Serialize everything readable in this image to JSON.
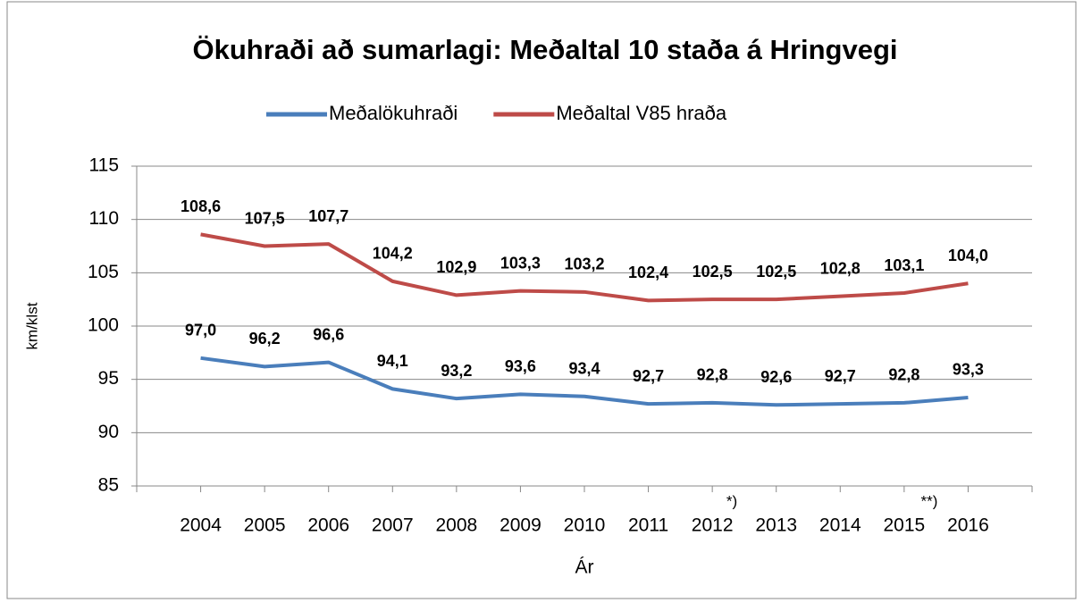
{
  "chart_data": {
    "type": "line",
    "title": "Ökuhraði að sumarlagi: Meðaltal 10 staða á Hringvegi",
    "x_label": "Ár",
    "y_label": "km/klst",
    "categories": [
      "2004",
      "2005",
      "2006",
      "2007",
      "2008",
      "2009",
      "2010",
      "2011",
      "2012",
      "2013",
      "2014",
      "2015",
      "2016"
    ],
    "series": [
      {
        "name": "Meðalökuhraði",
        "color": "#4a7ebb",
        "values": [
          97.0,
          96.2,
          96.6,
          94.1,
          93.2,
          93.6,
          93.4,
          92.7,
          92.8,
          92.6,
          92.7,
          92.8,
          93.3
        ],
        "value_labels": [
          "97,0",
          "96,2",
          "96,6",
          "94,1",
          "93,2",
          "93,6",
          "93,4",
          "92,7",
          "92,8",
          "92,6",
          "92,7",
          "92,8",
          "93,3"
        ]
      },
      {
        "name": "Meðaltal V85 hraða",
        "color": "#be4b48",
        "values": [
          108.6,
          107.5,
          107.7,
          104.2,
          102.9,
          103.3,
          103.2,
          102.4,
          102.5,
          102.5,
          102.8,
          103.1,
          104.0
        ],
        "value_labels": [
          "108,6",
          "107,5",
          "107,7",
          "104,2",
          "102,9",
          "103,3",
          "103,2",
          "102,4",
          "102,5",
          "102,5",
          "102,8",
          "103,1",
          "104,0"
        ]
      }
    ],
    "ylim": [
      85,
      115
    ],
    "yticks": [
      85,
      90,
      95,
      100,
      105,
      110,
      115
    ],
    "grid": true,
    "legend": "top",
    "annotations": [
      "*)",
      "**)"
    ]
  }
}
